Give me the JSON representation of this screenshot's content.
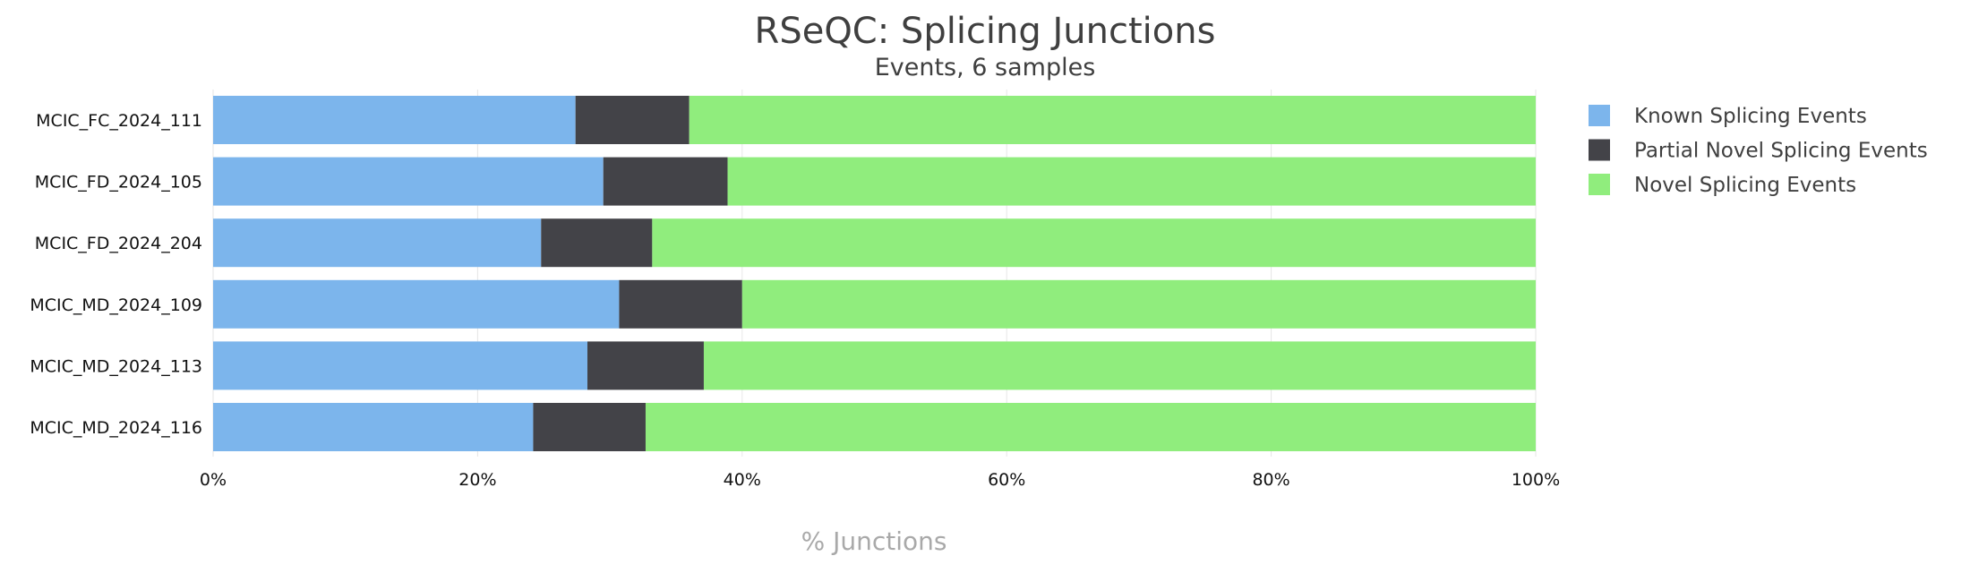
{
  "chart_data": {
    "type": "bar",
    "orientation": "horizontal",
    "stacked": true,
    "title": "RSeQC: Splicing Junctions",
    "subtitle": "Events, 6 samples",
    "xlabel": "% Junctions",
    "ylabel": "",
    "xlim": [
      0,
      100
    ],
    "x_ticks": [
      "0%",
      "20%",
      "40%",
      "60%",
      "80%",
      "100%"
    ],
    "grid": true,
    "legend_position": "right",
    "categories": [
      "MCIC_FC_2024_111",
      "MCIC_FD_2024_105",
      "MCIC_FD_2024_204",
      "MCIC_MD_2024_109",
      "MCIC_MD_2024_113",
      "MCIC_MD_2024_116"
    ],
    "series": [
      {
        "name": "Known Splicing Events",
        "color": "#7cb5ec",
        "values": [
          27.4,
          29.5,
          24.8,
          30.7,
          28.3,
          24.2
        ]
      },
      {
        "name": "Partial Novel Splicing Events",
        "color": "#434348",
        "values": [
          8.6,
          9.4,
          8.4,
          9.3,
          8.8,
          8.5
        ]
      },
      {
        "name": "Novel Splicing Events",
        "color": "#90ed7d",
        "values": [
          64.0,
          61.1,
          66.8,
          60.0,
          62.9,
          67.3
        ]
      }
    ]
  }
}
